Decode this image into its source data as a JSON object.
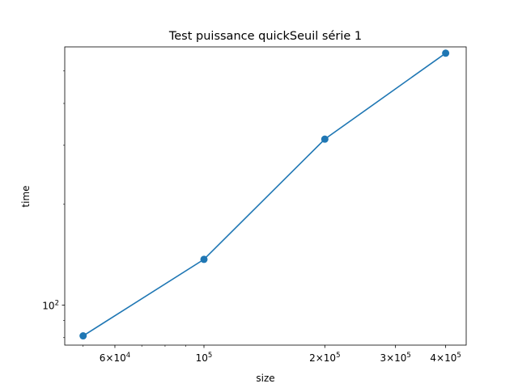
{
  "chart_data": {
    "type": "line",
    "title": "Test puissance quickSeuil série 1",
    "xlabel": "size",
    "ylabel": "time",
    "x_scale": "log",
    "y_scale": "log",
    "xlim": [
      45000,
      450000
    ],
    "ylim": [
      76,
      590
    ],
    "grid": false,
    "color": "#1f77b4",
    "marker": "circle",
    "series": [
      {
        "x": [
          50000,
          100000,
          200000,
          400000
        ],
        "y": [
          81,
          137,
          313,
          565
        ]
      }
    ],
    "x_major_ticks": [
      {
        "value": 60000,
        "mantissa": "6",
        "base": "10",
        "exp": "4"
      },
      {
        "value": 100000,
        "mantissa": "",
        "base": "10",
        "exp": "5"
      },
      {
        "value": 200000,
        "mantissa": "2",
        "base": "10",
        "exp": "5"
      },
      {
        "value": 300000,
        "mantissa": "3",
        "base": "10",
        "exp": "5"
      },
      {
        "value": 400000,
        "mantissa": "4",
        "base": "10",
        "exp": "5"
      }
    ],
    "x_minor_ticks": [
      50000,
      70000,
      80000,
      90000
    ],
    "y_major_ticks": [
      {
        "value": 100,
        "mantissa": "",
        "base": "10",
        "exp": "2"
      }
    ]
  }
}
